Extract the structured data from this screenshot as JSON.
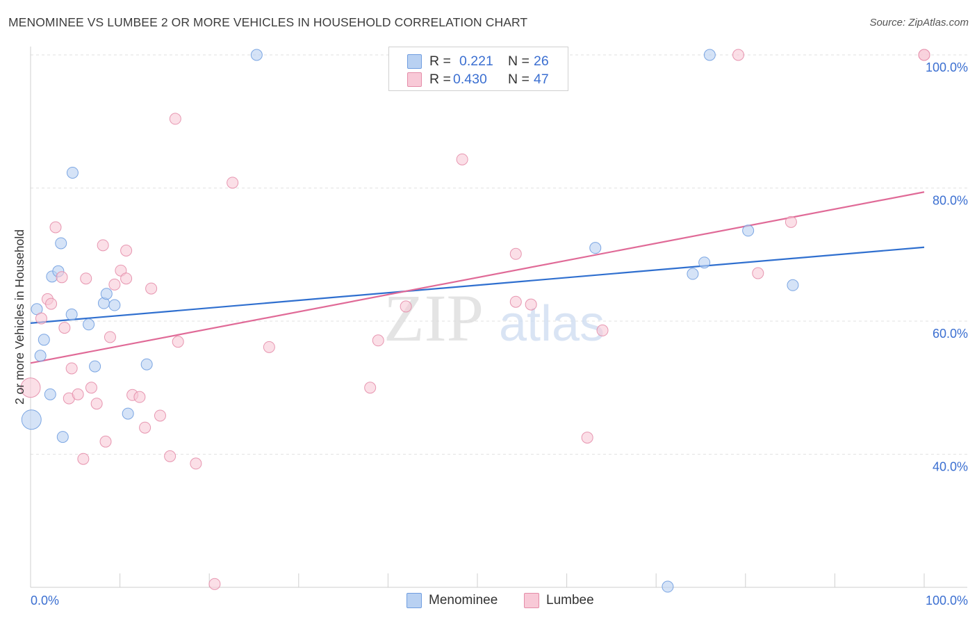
{
  "chart_data": {
    "type": "scatter",
    "title": "MENOMINEE VS LUMBEE 2 OR MORE VEHICLES IN HOUSEHOLD CORRELATION CHART",
    "source": "Source: ZipAtlas.com",
    "ylabel": "2 or more Vehicles in Household",
    "xlabel": "",
    "xlim": [
      0,
      100
    ],
    "ylim": [
      20,
      100
    ],
    "x_tick_labels": [
      "0.0%",
      "100.0%"
    ],
    "y_ticks": [
      {
        "value": 100,
        "label": "100.0%"
      },
      {
        "value": 80,
        "label": "80.0%"
      },
      {
        "value": 60,
        "label": "60.0%"
      },
      {
        "value": 40,
        "label": "40.0%"
      }
    ],
    "watermark": {
      "zip": "ZIP",
      "atlas": "atlas"
    },
    "legend": [
      {
        "r_label": "R =",
        "r_value": "0.221",
        "n_label": "N =",
        "n_value": "26"
      },
      {
        "r_label": "R =",
        "r_value": "0.430",
        "n_label": "N =",
        "n_value": "47"
      }
    ],
    "series": [
      {
        "name": "Menominee",
        "color": "#6f9de0",
        "fill": "#b9d1f2",
        "trend": {
          "x": [
            0,
            100
          ],
          "y": [
            59.7,
            71.1
          ],
          "color": "#2f6fcf"
        },
        "points": [
          {
            "x": 0.1,
            "y": 45.2,
            "big": true
          },
          {
            "x": 0.7,
            "y": 61.8
          },
          {
            "x": 1.1,
            "y": 54.8
          },
          {
            "x": 1.5,
            "y": 57.2
          },
          {
            "x": 2.2,
            "y": 49.0
          },
          {
            "x": 2.4,
            "y": 66.7
          },
          {
            "x": 3.1,
            "y": 67.5
          },
          {
            "x": 3.4,
            "y": 71.7
          },
          {
            "x": 3.6,
            "y": 42.6
          },
          {
            "x": 4.6,
            "y": 61.0
          },
          {
            "x": 4.7,
            "y": 82.3
          },
          {
            "x": 6.5,
            "y": 59.5
          },
          {
            "x": 7.2,
            "y": 53.2
          },
          {
            "x": 8.2,
            "y": 62.7
          },
          {
            "x": 8.5,
            "y": 64.1
          },
          {
            "x": 9.4,
            "y": 62.4
          },
          {
            "x": 10.9,
            "y": 46.1
          },
          {
            "x": 13.0,
            "y": 53.5
          },
          {
            "x": 25.3,
            "y": 100.0
          },
          {
            "x": 63.2,
            "y": 71.0
          },
          {
            "x": 74.1,
            "y": 67.1
          },
          {
            "x": 75.4,
            "y": 68.8
          },
          {
            "x": 76.0,
            "y": 100.0
          },
          {
            "x": 80.3,
            "y": 73.6
          },
          {
            "x": 85.3,
            "y": 65.4
          },
          {
            "x": 71.3,
            "y": 20.1
          }
        ]
      },
      {
        "name": "Lumbee",
        "color": "#e48ca8",
        "fill": "#f8c9d7",
        "trend": {
          "x": [
            0,
            100
          ],
          "y": [
            53.7,
            79.4
          ],
          "color": "#e06a97"
        },
        "points": [
          {
            "x": 0.0,
            "y": 50.0,
            "big": true
          },
          {
            "x": 1.2,
            "y": 60.4
          },
          {
            "x": 1.9,
            "y": 63.3
          },
          {
            "x": 2.3,
            "y": 62.6
          },
          {
            "x": 2.8,
            "y": 74.1
          },
          {
            "x": 3.5,
            "y": 66.6
          },
          {
            "x": 3.8,
            "y": 59.0
          },
          {
            "x": 4.3,
            "y": 48.4
          },
          {
            "x": 4.6,
            "y": 52.9
          },
          {
            "x": 5.3,
            "y": 49.0
          },
          {
            "x": 5.9,
            "y": 39.3
          },
          {
            "x": 6.2,
            "y": 66.4
          },
          {
            "x": 6.8,
            "y": 50.0
          },
          {
            "x": 7.4,
            "y": 47.6
          },
          {
            "x": 8.1,
            "y": 71.4
          },
          {
            "x": 8.4,
            "y": 41.9
          },
          {
            "x": 8.9,
            "y": 57.6
          },
          {
            "x": 9.4,
            "y": 65.5
          },
          {
            "x": 10.1,
            "y": 67.6
          },
          {
            "x": 10.7,
            "y": 66.4
          },
          {
            "x": 10.7,
            "y": 70.6
          },
          {
            "x": 11.4,
            "y": 48.9
          },
          {
            "x": 12.2,
            "y": 48.6
          },
          {
            "x": 12.8,
            "y": 44.0
          },
          {
            "x": 13.5,
            "y": 64.9
          },
          {
            "x": 14.5,
            "y": 45.8
          },
          {
            "x": 15.6,
            "y": 39.7
          },
          {
            "x": 16.2,
            "y": 90.4
          },
          {
            "x": 16.5,
            "y": 56.9
          },
          {
            "x": 18.5,
            "y": 38.6
          },
          {
            "x": 20.6,
            "y": 20.5
          },
          {
            "x": 22.6,
            "y": 80.8
          },
          {
            "x": 26.7,
            "y": 56.1
          },
          {
            "x": 38.0,
            "y": 50.0
          },
          {
            "x": 38.9,
            "y": 57.1
          },
          {
            "x": 42.0,
            "y": 62.2
          },
          {
            "x": 48.3,
            "y": 84.3
          },
          {
            "x": 54.3,
            "y": 70.1
          },
          {
            "x": 54.3,
            "y": 62.9
          },
          {
            "x": 56.0,
            "y": 62.5
          },
          {
            "x": 62.3,
            "y": 42.5
          },
          {
            "x": 64.0,
            "y": 58.6
          },
          {
            "x": 79.2,
            "y": 100.0
          },
          {
            "x": 81.4,
            "y": 67.2
          },
          {
            "x": 85.1,
            "y": 74.9
          },
          {
            "x": 100.0,
            "y": 100.0
          },
          {
            "x": 100.0,
            "y": 100.0
          }
        ]
      }
    ]
  }
}
